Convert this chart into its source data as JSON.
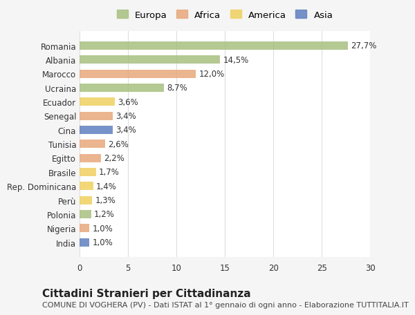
{
  "countries": [
    "Romania",
    "Albania",
    "Marocco",
    "Ucraina",
    "Ecuador",
    "Senegal",
    "Cina",
    "Tunisia",
    "Egitto",
    "Brasile",
    "Rep. Dominicana",
    "Perù",
    "Polonia",
    "Nigeria",
    "India"
  ],
  "values": [
    27.7,
    14.5,
    12.0,
    8.7,
    3.6,
    3.4,
    3.4,
    2.6,
    2.2,
    1.7,
    1.4,
    1.3,
    1.2,
    1.0,
    1.0
  ],
  "labels": [
    "27,7%",
    "14,5%",
    "12,0%",
    "8,7%",
    "3,6%",
    "3,4%",
    "3,4%",
    "2,6%",
    "2,2%",
    "1,7%",
    "1,4%",
    "1,3%",
    "1,2%",
    "1,0%",
    "1,0%"
  ],
  "continents": [
    "Europa",
    "Europa",
    "Africa",
    "Europa",
    "America",
    "Africa",
    "Asia",
    "Africa",
    "Africa",
    "America",
    "America",
    "America",
    "Europa",
    "Africa",
    "Asia"
  ],
  "colors": {
    "Europa": "#a8c080",
    "Africa": "#e8a87c",
    "America": "#f0d060",
    "Asia": "#6080c0"
  },
  "legend_colors": {
    "Europa": "#a8c080",
    "Africa": "#e8a87c",
    "America": "#f0d060",
    "Asia": "#6080c0"
  },
  "xlim": [
    0,
    30
  ],
  "xticks": [
    0,
    5,
    10,
    15,
    20,
    25,
    30
  ],
  "title": "Cittadini Stranieri per Cittadinanza",
  "subtitle": "COMUNE DI VOGHERA (PV) - Dati ISTAT al 1° gennaio di ogni anno - Elaborazione TUTTITALIA.IT",
  "background_color": "#f5f5f5",
  "bar_background": "#ffffff",
  "grid_color": "#dddddd",
  "label_fontsize": 8.5,
  "tick_fontsize": 8.5,
  "title_fontsize": 11,
  "subtitle_fontsize": 8
}
